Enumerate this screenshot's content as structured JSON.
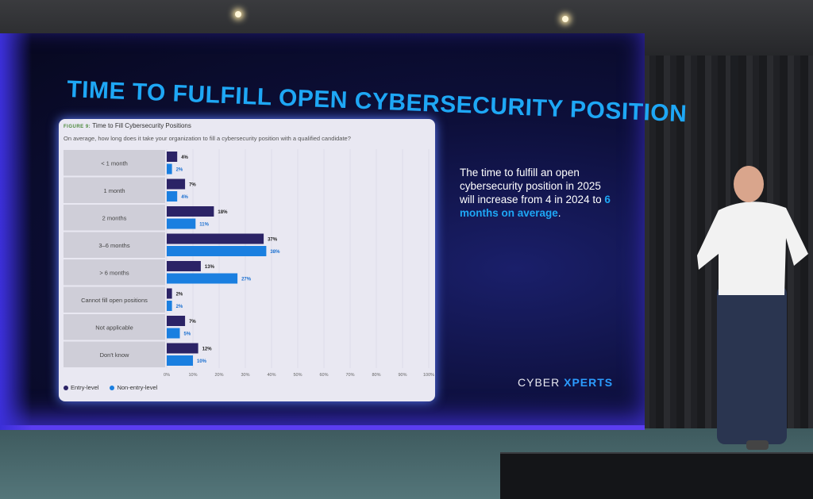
{
  "slide": {
    "title": "TIME TO FULFILL OPEN CYBERSECURITY POSITION",
    "statement_prefix": "The time to fulfill an open cybersecurity position in 2025 will increase from 4 in 2024 to",
    "statement_highlight": "6 months on average",
    "statement_suffix": ".",
    "logo_left": "CYBER",
    "logo_right": "XPERTS"
  },
  "colors": {
    "title": "#1ea7f5",
    "entry_level": "#2b2366",
    "non_entry_level": "#1a7fe0"
  },
  "chart_data": {
    "type": "bar",
    "orientation": "horizontal",
    "figure_label": "FIGURE 9:",
    "title": "Time to Fill Cybersecurity Positions",
    "subtitle": "On average, how long does it take your organization to fill a cybersecurity position with a qualified candidate?",
    "categories": [
      "< 1 month",
      "1 month",
      "2 months",
      "3–6 months",
      "> 6 months",
      "Cannot fill open positions",
      "Not applicable",
      "Don't know"
    ],
    "series": [
      {
        "name": "Entry-level",
        "values": [
          4,
          7,
          18,
          37,
          13,
          2,
          7,
          12
        ]
      },
      {
        "name": "Non-entry-level",
        "values": [
          2,
          4,
          11,
          38,
          27,
          2,
          5,
          10
        ]
      }
    ],
    "xlim": [
      0,
      100
    ],
    "xticks": [
      "0%",
      "10%",
      "20%",
      "30%",
      "40%",
      "50%",
      "60%",
      "70%",
      "80%",
      "90%",
      "100%"
    ],
    "legend": "bottom-left",
    "grid": true
  }
}
